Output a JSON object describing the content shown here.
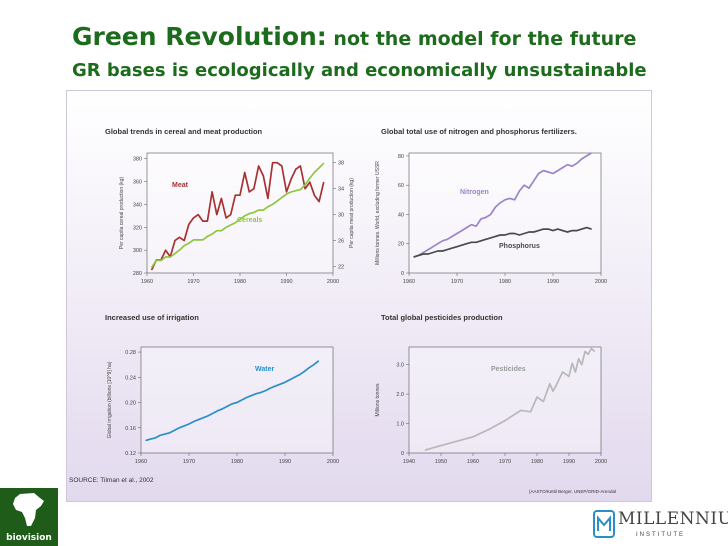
{
  "slide": {
    "title_main": "Green Revolution:",
    "title_rest": " not the model for the future",
    "subtitle": "GR bases is ecologically and economically unsustainable"
  },
  "figure": {
    "source": "SOURCE: Tilman et al., 2002",
    "credit": "(AASTO/Kettil Berger, UNEP/GRID-Arendal"
  },
  "logos": {
    "biovision": "biovision",
    "millennium": "MILLENNIUM",
    "millennium_sub": "INSTITUTE"
  },
  "colors": {
    "title": "#1d6b1d",
    "meat": "#a83232",
    "cereals": "#8ec63f",
    "nitrogen": "#9b84c8",
    "phosphorus": "#4a4a4a",
    "water": "#2a8fc8",
    "pesticides": "#b8b8b8"
  },
  "chart_data": [
    {
      "type": "line",
      "title": "Global trends in cereal and meat production",
      "xlabel": "",
      "ylabel": "Per capita cereal production (kg)",
      "ylabel_right": "Per capita meat production (kg)",
      "xlim": [
        1960,
        2000
      ],
      "xticks": [
        1960,
        1970,
        1980,
        1990,
        2000
      ],
      "ylim": [
        280,
        385
      ],
      "yticks": [
        280,
        300,
        320,
        340,
        360,
        380
      ],
      "ylim_right": [
        21,
        39.5
      ],
      "yticks_right": [
        22,
        26,
        30,
        34,
        38
      ],
      "series": [
        {
          "name": "Meat",
          "axis": "right",
          "color": "#a83232",
          "x": [
            1961,
            1962,
            1963,
            1964,
            1965,
            1966,
            1967,
            1968,
            1969,
            1970,
            1971,
            1972,
            1973,
            1974,
            1975,
            1976,
            1977,
            1978,
            1979,
            1980,
            1981,
            1982,
            1983,
            1984,
            1985,
            1986,
            1987,
            1988,
            1989,
            1990,
            1991,
            1992,
            1993,
            1994,
            1995,
            1996,
            1997,
            1998
          ],
          "values": [
            21.5,
            23.0,
            23.0,
            24.5,
            23.5,
            26.0,
            26.5,
            26.0,
            28.5,
            29.5,
            30.0,
            29.0,
            29.0,
            33.5,
            30.0,
            32.5,
            29.5,
            30.0,
            33.0,
            33.0,
            36.5,
            33.5,
            34.0,
            37.5,
            36.0,
            32.5,
            38.0,
            38.0,
            37.5,
            33.5,
            35.5,
            37.0,
            37.5,
            34.0,
            35.0,
            33.0,
            32.0,
            35.0
          ]
        },
        {
          "name": "Cereals",
          "axis": "left",
          "color": "#8ec63f",
          "x": [
            1961,
            1962,
            1963,
            1964,
            1965,
            1966,
            1967,
            1968,
            1969,
            1970,
            1971,
            1972,
            1973,
            1974,
            1975,
            1976,
            1977,
            1978,
            1979,
            1980,
            1981,
            1982,
            1983,
            1984,
            1985,
            1986,
            1987,
            1988,
            1989,
            1990,
            1991,
            1992,
            1993,
            1994,
            1995,
            1996,
            1997,
            1998
          ],
          "values": [
            285,
            291,
            291,
            294,
            294,
            297,
            300,
            304,
            306,
            309,
            309,
            309,
            312,
            314,
            317,
            317,
            320,
            322,
            324,
            327,
            330,
            332,
            333,
            335,
            335,
            338,
            340,
            343,
            346,
            349,
            351,
            352,
            353,
            357,
            363,
            368,
            372,
            376
          ]
        }
      ],
      "labels": [
        "Meat",
        "Cereals"
      ]
    },
    {
      "type": "line",
      "title": "Global total use of nitrogen and phosphorus fertilizers.",
      "ylabel": "Millions tonnes. World, excluding former USSR",
      "xlim": [
        1960,
        2000
      ],
      "xticks": [
        1960,
        1970,
        1980,
        1990,
        2000
      ],
      "ylim": [
        0,
        82
      ],
      "yticks": [
        0,
        20,
        40,
        60,
        80
      ],
      "series": [
        {
          "name": "Nitrogen",
          "color": "#9b84c8",
          "x": [
            1961,
            1962,
            1963,
            1964,
            1965,
            1966,
            1967,
            1968,
            1969,
            1970,
            1971,
            1972,
            1973,
            1974,
            1975,
            1976,
            1977,
            1978,
            1979,
            1980,
            1981,
            1982,
            1983,
            1984,
            1985,
            1986,
            1987,
            1988,
            1989,
            1990,
            1991,
            1992,
            1993,
            1994,
            1995,
            1996,
            1997,
            1998
          ],
          "values": [
            11,
            12,
            14,
            16,
            18,
            20,
            22,
            23,
            25,
            27,
            29,
            31,
            33,
            32,
            37,
            38,
            40,
            45,
            48,
            50,
            51,
            50,
            56,
            60,
            58,
            63,
            68,
            70,
            69,
            68,
            70,
            72,
            74,
            73,
            75,
            78,
            80,
            82
          ]
        },
        {
          "name": "Phosphorus",
          "color": "#4a4a4a",
          "x": [
            1961,
            1962,
            1963,
            1964,
            1965,
            1966,
            1967,
            1968,
            1969,
            1970,
            1971,
            1972,
            1973,
            1974,
            1975,
            1976,
            1977,
            1978,
            1979,
            1980,
            1981,
            1982,
            1983,
            1984,
            1985,
            1986,
            1987,
            1988,
            1989,
            1990,
            1991,
            1992,
            1993,
            1994,
            1995,
            1996,
            1997,
            1998
          ],
          "values": [
            11,
            12,
            13,
            13,
            14,
            15,
            15,
            16,
            17,
            18,
            19,
            20,
            21,
            21,
            22,
            23,
            24,
            25,
            26,
            26,
            27,
            27,
            26,
            27,
            28,
            28,
            29,
            30,
            30,
            29,
            30,
            29,
            28,
            29,
            29,
            30,
            31,
            30
          ]
        }
      ],
      "labels": [
        "Nitrogen",
        "Phosphorus"
      ]
    },
    {
      "type": "line",
      "title": "Increased use of irrigation",
      "ylabel": "Global irrigation (billions [10^9] ha)",
      "xlim": [
        1960,
        2000
      ],
      "xticks": [
        1960,
        1970,
        1980,
        1990,
        2000
      ],
      "ylim": [
        0.12,
        0.288
      ],
      "yticks": [
        0.12,
        0.16,
        0.2,
        0.24,
        0.28
      ],
      "ytick_labels": [
        "0.12",
        "0.16",
        "0.20",
        "0.24",
        "0.28"
      ],
      "series": [
        {
          "name": "Water",
          "color": "#2a8fc8",
          "x": [
            1961,
            1962,
            1963,
            1964,
            1965,
            1966,
            1967,
            1968,
            1969,
            1970,
            1971,
            1972,
            1973,
            1974,
            1975,
            1976,
            1977,
            1978,
            1979,
            1980,
            1981,
            1982,
            1983,
            1984,
            1985,
            1986,
            1987,
            1988,
            1989,
            1990,
            1991,
            1992,
            1993,
            1994,
            1995,
            1996,
            1997
          ],
          "values": [
            0.14,
            0.142,
            0.144,
            0.148,
            0.15,
            0.152,
            0.156,
            0.16,
            0.163,
            0.166,
            0.17,
            0.173,
            0.176,
            0.179,
            0.183,
            0.187,
            0.19,
            0.194,
            0.198,
            0.2,
            0.204,
            0.208,
            0.211,
            0.214,
            0.216,
            0.219,
            0.223,
            0.226,
            0.229,
            0.232,
            0.236,
            0.24,
            0.244,
            0.249,
            0.255,
            0.26,
            0.266
          ]
        }
      ],
      "labels": [
        "Water"
      ]
    },
    {
      "type": "line",
      "title": "Total global pesticides production",
      "ylabel": "Millions tonnes",
      "xlim": [
        1940,
        2000
      ],
      "xticks": [
        1940,
        1950,
        1960,
        1970,
        1980,
        1990,
        2000
      ],
      "ylim": [
        0,
        3.6
      ],
      "yticks": [
        0,
        1.0,
        2.0,
        3.0
      ],
      "ytick_labels": [
        "0",
        "1.0",
        "2.0",
        "3.0"
      ],
      "series": [
        {
          "name": "Pesticides",
          "color": "#b8b8b8",
          "x": [
            1945,
            1950,
            1955,
            1960,
            1965,
            1970,
            1975,
            1978,
            1980,
            1982,
            1984,
            1985,
            1986,
            1988,
            1990,
            1991,
            1992,
            1993,
            1994,
            1995,
            1996,
            1997,
            1998
          ],
          "values": [
            0.1,
            0.25,
            0.4,
            0.55,
            0.8,
            1.1,
            1.45,
            1.4,
            1.9,
            1.75,
            2.35,
            2.1,
            2.3,
            2.75,
            2.6,
            3.05,
            2.75,
            3.2,
            3.0,
            3.45,
            3.35,
            3.55,
            3.45
          ]
        }
      ],
      "labels": [
        "Pesticides"
      ]
    }
  ]
}
